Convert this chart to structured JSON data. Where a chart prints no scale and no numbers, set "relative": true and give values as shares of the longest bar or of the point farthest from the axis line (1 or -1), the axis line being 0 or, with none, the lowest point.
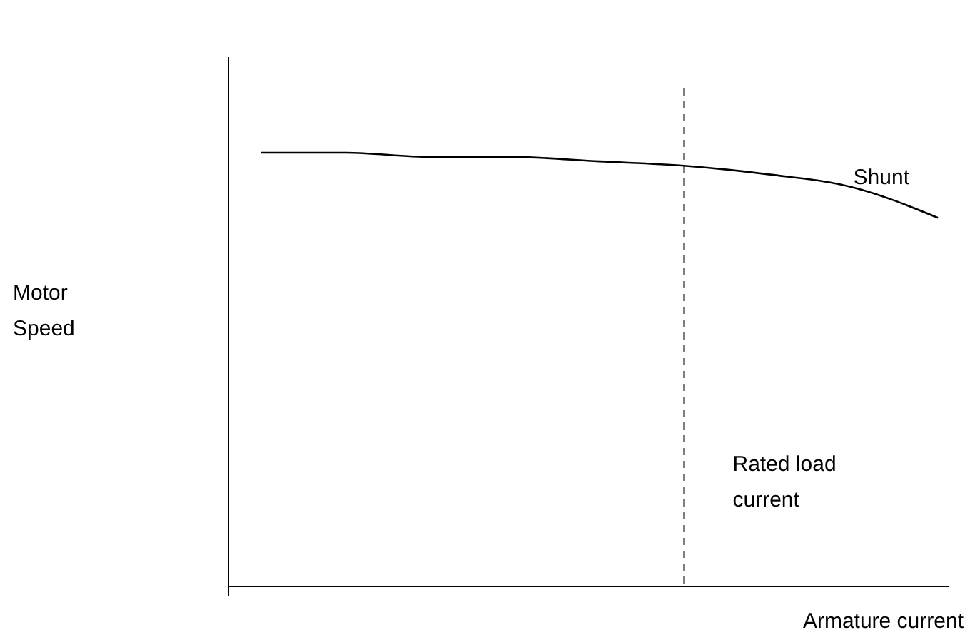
{
  "chart_data": {
    "type": "line",
    "relative": true,
    "xlabel": "Armature current",
    "categories": [
      null,
      null,
      null,
      null,
      null,
      null,
      null,
      null,
      null
    ],
    "series": [
      {
        "name": "Shunt",
        "color": "#000000",
        "values": [
          1,
          1,
          0.99,
          0.99,
          0.98,
          0.97,
          0.95,
          0.92,
          0.85
        ]
      }
    ],
    "annotations": [
      "Motor Speed",
      "Rated load current"
    ],
    "legend": false,
    "marker": "none",
    "line_style": "solid"
  }
}
